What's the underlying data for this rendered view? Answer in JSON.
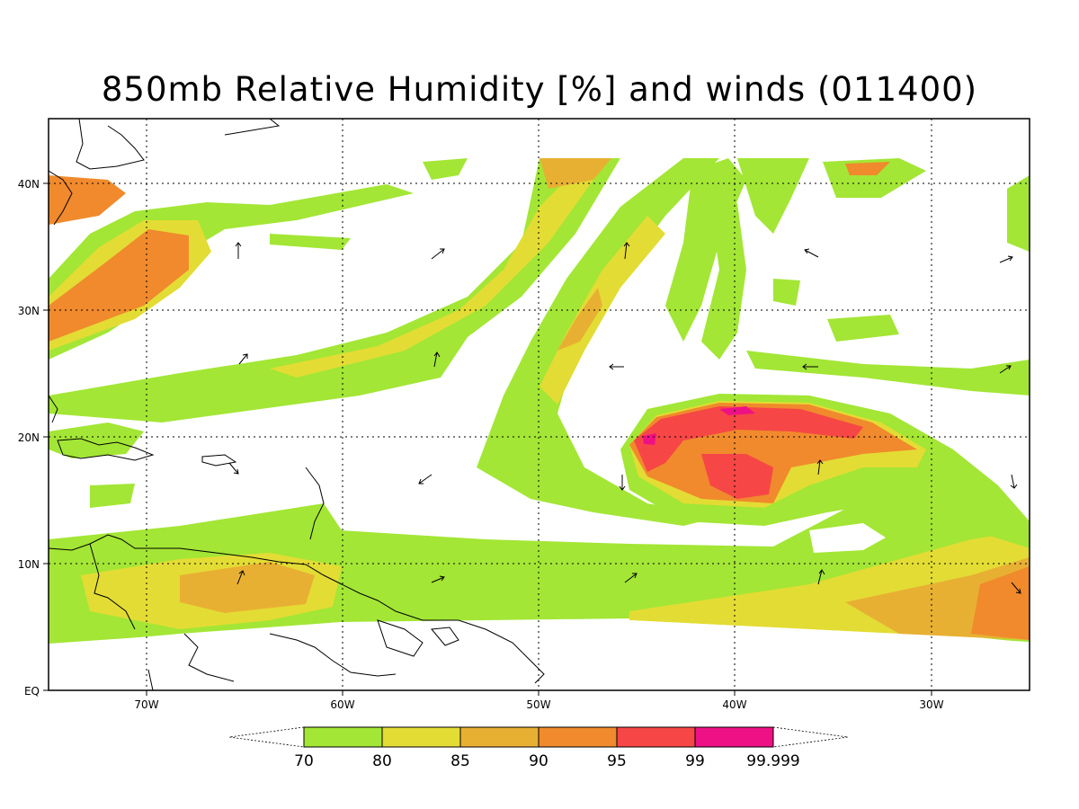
{
  "title": "850mb Relative Humidity [%] and winds (011400)",
  "map": {
    "lon_range": [
      -75,
      -25
    ],
    "lat_range": [
      0,
      45
    ],
    "x_ticks": [
      "70W",
      "60W",
      "50W",
      "40W",
      "30W"
    ],
    "y_ticks": [
      "EQ",
      "10N",
      "20N",
      "30N",
      "40N"
    ],
    "grid": "dotted"
  },
  "colorbar": {
    "levels": [
      "70",
      "80",
      "85",
      "90",
      "95",
      "99",
      "99.999"
    ],
    "colors": [
      "#a3e635",
      "#e3dc34",
      "#e8b033",
      "#f08a2c",
      "#f64646",
      "#ee1185"
    ]
  }
}
